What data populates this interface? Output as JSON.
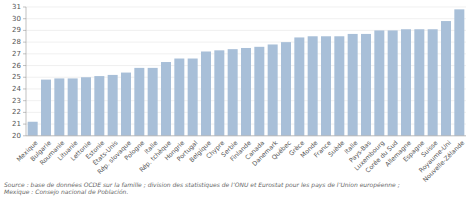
{
  "chart_data": {
    "type": "bar",
    "categories": [
      "Mexique",
      "Bulgarie",
      "Roumanie",
      "Lituanie",
      "Lettonie",
      "Estonie",
      "États-Unis",
      "Rép. slovaque",
      "Pologne",
      "Italie",
      "Rép. tchèque",
      "Hongrie",
      "Portugal",
      "Belgique",
      "Chypre",
      "Serbie",
      "Finlande",
      "Canada",
      "Danemark",
      "Québec",
      "Grèce",
      "Monde",
      "France",
      "Suède",
      "Italie",
      "Pays-Bas",
      "Luxembourg",
      "Corée du Sud",
      "Allemagne",
      "Espagne",
      "Suisse",
      "Royaume-Uni",
      "Nouvelle-Zélande"
    ],
    "values": [
      21.2,
      24.8,
      24.9,
      24.9,
      25.0,
      25.1,
      25.2,
      25.4,
      25.8,
      25.8,
      26.3,
      26.6,
      26.6,
      27.2,
      27.3,
      27.4,
      27.5,
      27.6,
      27.8,
      28.0,
      28.4,
      28.5,
      28.5,
      28.5,
      28.7,
      28.7,
      29.0,
      29.0,
      29.1,
      29.1,
      29.1,
      29.8,
      30.8
    ],
    "color": "#a8bfd8",
    "ylim": [
      20,
      31
    ],
    "yticks": [
      20,
      21,
      22,
      23,
      24,
      25,
      26,
      27,
      28,
      29,
      30,
      31
    ],
    "grid": true,
    "source": "Source : base de données OCDE sur la famille ; division des statistiques de l’ONU et Eurostat pour les pays de l’Union européenne ;\nMexique : Consejo nacional de Población."
  }
}
